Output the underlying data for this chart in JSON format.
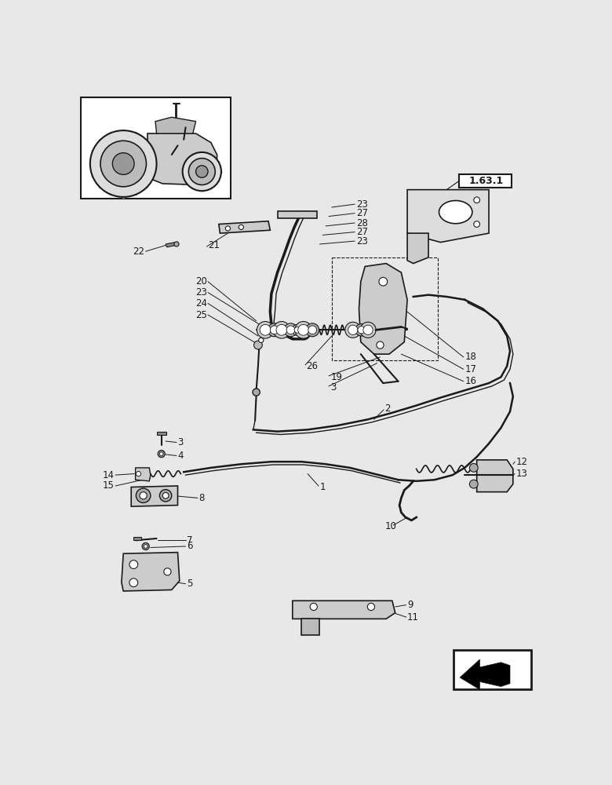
{
  "bg_color": "#e8e8e8",
  "white": "#ffffff",
  "line_color": "#1a1a1a",
  "figsize": [
    7.8,
    10.0
  ],
  "dpi": 100
}
